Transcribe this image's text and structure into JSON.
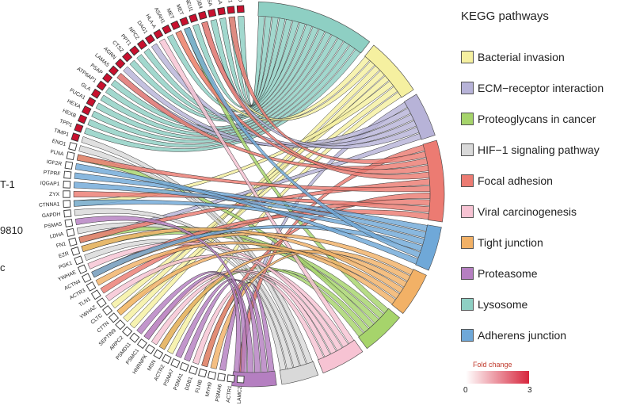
{
  "cut_labels": [
    "T-1",
    "9810",
    "c"
  ],
  "legend": {
    "title": "KEGG pathways",
    "items": [
      {
        "label": "Bacterial invasion",
        "color": "#f5f0a0"
      },
      {
        "label": "ECM−receptor interaction",
        "color": "#b7b3d8"
      },
      {
        "label": "Proteoglycans in cancer",
        "color": "#a6d46b"
      },
      {
        "label": "HIF−1 signaling pathway",
        "color": "#d9d9d9"
      },
      {
        "label": "Focal adhesion",
        "color": "#ec7b72"
      },
      {
        "label": "Viral carcinogenesis",
        "color": "#f7c3d3"
      },
      {
        "label": "Tight junction",
        "color": "#f2b166"
      },
      {
        "label": "Proteasome",
        "color": "#b57fc1"
      },
      {
        "label": "Lysosome",
        "color": "#8ecfc3"
      },
      {
        "label": "Adherens junction",
        "color": "#6fa8d8"
      }
    ]
  },
  "fold_change": {
    "title": "Fold change",
    "min": "0",
    "max": "3",
    "low_color": "#ffffff",
    "high_color": "#d7263d"
  },
  "genes": [
    {
      "name": "LAMC2",
      "up": false
    },
    {
      "name": "ACTR1",
      "up": false
    },
    {
      "name": "PSMA6",
      "up": false
    },
    {
      "name": "MYH9",
      "up": false
    },
    {
      "name": "FLNB",
      "up": false
    },
    {
      "name": "DDB1",
      "up": false
    },
    {
      "name": "PSMA1",
      "up": false
    },
    {
      "name": "PSMA7",
      "up": false
    },
    {
      "name": "ACTR2",
      "up": false
    },
    {
      "name": "MSN",
      "up": false
    },
    {
      "name": "HNRNPK",
      "up": false
    },
    {
      "name": "PSMC1",
      "up": false
    },
    {
      "name": "PSMD11",
      "up": false
    },
    {
      "name": "ARPC2",
      "up": false
    },
    {
      "name": "SEPTIN9",
      "up": false
    },
    {
      "name": "CTTN",
      "up": false
    },
    {
      "name": "CLTC",
      "up": false
    },
    {
      "name": "YWHAZ",
      "up": false
    },
    {
      "name": "TLN1",
      "up": false
    },
    {
      "name": "ACTR3",
      "up": false
    },
    {
      "name": "ACTN4",
      "up": false
    },
    {
      "name": "YWHAE",
      "up": false
    },
    {
      "name": "PGK1",
      "up": false
    },
    {
      "name": "EZR",
      "up": false
    },
    {
      "name": "FN1",
      "up": false
    },
    {
      "name": "LDHA",
      "up": false
    },
    {
      "name": "PSMA5",
      "up": false
    },
    {
      "name": "GAPDH",
      "up": false
    },
    {
      "name": "CTNNA1",
      "up": false
    },
    {
      "name": "ZYX",
      "up": false
    },
    {
      "name": "IQGAP1",
      "up": false
    },
    {
      "name": "PTPRF",
      "up": false
    },
    {
      "name": "IGF2R",
      "up": false
    },
    {
      "name": "FLNA",
      "up": false
    },
    {
      "name": "ENO1",
      "up": false
    },
    {
      "name": "TIMP1",
      "up": true
    },
    {
      "name": "TPP1",
      "up": true
    },
    {
      "name": "HEXB",
      "up": true
    },
    {
      "name": "HEXA",
      "up": true
    },
    {
      "name": "FUCA1",
      "up": true
    },
    {
      "name": "GLA",
      "up": true
    },
    {
      "name": "ATP6AP1",
      "up": true
    },
    {
      "name": "PSAP",
      "up": true
    },
    {
      "name": "LAMA5",
      "up": true
    },
    {
      "name": "AGRN",
      "up": true
    },
    {
      "name": "CTSZ",
      "up": true
    },
    {
      "name": "PPT1",
      "up": true
    },
    {
      "name": "NPC2",
      "up": true
    },
    {
      "name": "DAG1",
      "up": true
    },
    {
      "name": "HLA-A",
      "up": true
    },
    {
      "name": "ASAH1",
      "up": true
    },
    {
      "name": "MET",
      "up": true
    },
    {
      "name": "MET",
      "up": true
    },
    {
      "name": "NEU1",
      "up": true
    },
    {
      "name": "ITGB4",
      "up": true
    },
    {
      "name": "CTSA",
      "up": true
    },
    {
      "name": "GAA",
      "up": true
    },
    {
      "name": "LAMC1",
      "up": true
    },
    {
      "name": "CTSD",
      "up": true
    }
  ],
  "links": [
    {
      "gene": "CTSD",
      "pathway": "Lysosome"
    },
    {
      "gene": "LAMC1",
      "pathway": "Lysosome"
    },
    {
      "gene": "GAA",
      "pathway": "Lysosome"
    },
    {
      "gene": "CTSA",
      "pathway": "Lysosome"
    },
    {
      "gene": "NEU1",
      "pathway": "Lysosome"
    },
    {
      "gene": "ASAH1",
      "pathway": "Lysosome"
    },
    {
      "gene": "NPC2",
      "pathway": "Lysosome"
    },
    {
      "gene": "PPT1",
      "pathway": "Lysosome"
    },
    {
      "gene": "CTSZ",
      "pathway": "Lysosome"
    },
    {
      "gene": "PSAP",
      "pathway": "Lysosome"
    },
    {
      "gene": "ATP6AP1",
      "pathway": "Lysosome"
    },
    {
      "gene": "GLA",
      "pathway": "Lysosome"
    },
    {
      "gene": "FUCA1",
      "pathway": "Lysosome"
    },
    {
      "gene": "HEXA",
      "pathway": "Lysosome"
    },
    {
      "gene": "HEXB",
      "pathway": "Lysosome"
    },
    {
      "gene": "TPP1",
      "pathway": "Lysosome"
    },
    {
      "gene": "MET",
      "pathway": "Bacterial invasion"
    },
    {
      "gene": "ITGB4",
      "pathway": "Bacterial invasion"
    },
    {
      "gene": "CTTN",
      "pathway": "Bacterial invasion"
    },
    {
      "gene": "ARPC2",
      "pathway": "Bacterial invasion"
    },
    {
      "gene": "CLTC",
      "pathway": "Bacterial invasion"
    },
    {
      "gene": "CTNNA1",
      "pathway": "Bacterial invasion"
    },
    {
      "gene": "SEPTIN9",
      "pathway": "Bacterial invasion"
    },
    {
      "gene": "ACTR2",
      "pathway": "Bacterial invasion"
    },
    {
      "gene": "LAMC2",
      "pathway": "ECM−receptor interaction"
    },
    {
      "gene": "LAMA5",
      "pathway": "ECM−receptor interaction"
    },
    {
      "gene": "AGRN",
      "pathway": "ECM−receptor interaction"
    },
    {
      "gene": "DAG1",
      "pathway": "ECM−receptor interaction"
    },
    {
      "gene": "ITGB4",
      "pathway": "ECM−receptor interaction"
    },
    {
      "gene": "FN1",
      "pathway": "ECM−receptor interaction"
    },
    {
      "gene": "MET",
      "pathway": "Proteoglycans in cancer"
    },
    {
      "gene": "FN1",
      "pathway": "Proteoglycans in cancer"
    },
    {
      "gene": "EZR",
      "pathway": "Proteoglycans in cancer"
    },
    {
      "gene": "FLNA",
      "pathway": "Proteoglycans in cancer"
    },
    {
      "gene": "FLNB",
      "pathway": "Proteoglycans in cancer"
    },
    {
      "gene": "MSN",
      "pathway": "Proteoglycans in cancer"
    },
    {
      "gene": "TIMP1",
      "pathway": "HIF−1 signaling pathway"
    },
    {
      "gene": "ENO1",
      "pathway": "HIF−1 signaling pathway"
    },
    {
      "gene": "GAPDH",
      "pathway": "HIF−1 signaling pathway"
    },
    {
      "gene": "LDHA",
      "pathway": "HIF−1 signaling pathway"
    },
    {
      "gene": "PGK1",
      "pathway": "HIF−1 signaling pathway"
    },
    {
      "gene": "LAMC2",
      "pathway": "Focal adhesion"
    },
    {
      "gene": "LAMC1",
      "pathway": "Focal adhesion"
    },
    {
      "gene": "LAMA5",
      "pathway": "Focal adhesion"
    },
    {
      "gene": "MET",
      "pathway": "Focal adhesion"
    },
    {
      "gene": "ITGB4",
      "pathway": "Focal adhesion"
    },
    {
      "gene": "FN1",
      "pathway": "Focal adhesion"
    },
    {
      "gene": "FLNA",
      "pathway": "Focal adhesion"
    },
    {
      "gene": "FLNB",
      "pathway": "Focal adhesion"
    },
    {
      "gene": "TLN1",
      "pathway": "Focal adhesion"
    },
    {
      "gene": "ZYX",
      "pathway": "Focal adhesion"
    },
    {
      "gene": "ACTN4",
      "pathway": "Focal adhesion"
    },
    {
      "gene": "HLA-A",
      "pathway": "Viral carcinogenesis"
    },
    {
      "gene": "YWHAZ",
      "pathway": "Viral carcinogenesis"
    },
    {
      "gene": "YWHAE",
      "pathway": "Viral carcinogenesis"
    },
    {
      "gene": "HNRNPK",
      "pathway": "Viral carcinogenesis"
    },
    {
      "gene": "DDB1",
      "pathway": "Viral carcinogenesis"
    },
    {
      "gene": "PSMC1",
      "pathway": "Viral carcinogenesis"
    },
    {
      "gene": "ACTN4",
      "pathway": "Tight junction"
    },
    {
      "gene": "MYH9",
      "pathway": "Tight junction"
    },
    {
      "gene": "MSN",
      "pathway": "Tight junction"
    },
    {
      "gene": "EZR",
      "pathway": "Tight junction"
    },
    {
      "gene": "CTTN",
      "pathway": "Tight junction"
    },
    {
      "gene": "ACTR3",
      "pathway": "Tight junction"
    },
    {
      "gene": "PSMA6",
      "pathway": "Proteasome"
    },
    {
      "gene": "PSMA1",
      "pathway": "Proteasome"
    },
    {
      "gene": "PSMA7",
      "pathway": "Proteasome"
    },
    {
      "gene": "PSMA5",
      "pathway": "Proteasome"
    },
    {
      "gene": "PSMC1",
      "pathway": "Proteasome"
    },
    {
      "gene": "PSMD11",
      "pathway": "Proteasome"
    },
    {
      "gene": "PTPRF",
      "pathway": "Adherens junction"
    },
    {
      "gene": "IQGAP1",
      "pathway": "Adherens junction"
    },
    {
      "gene": "CTNNA1",
      "pathway": "Adherens junction"
    },
    {
      "gene": "ACTN4",
      "pathway": "Adherens junction"
    },
    {
      "gene": "MET",
      "pathway": "Adherens junction"
    },
    {
      "gene": "IGF2R",
      "pathway": "Adherens junction"
    }
  ]
}
